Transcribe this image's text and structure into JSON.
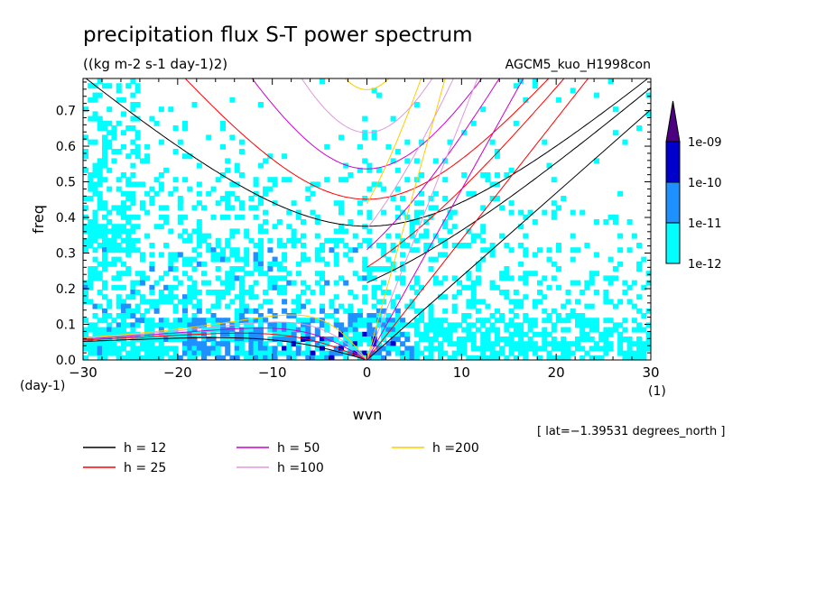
{
  "chart_data": {
    "type": "heatmap",
    "title": "precipitation flux S-T power spectrum",
    "subtitle": "((kg m-2 s-1 day-1)2)",
    "run_label": "AGCM5_kuo_H1998con",
    "xlabel": "wvn",
    "ylabel": "freq",
    "x_unit": "(1)",
    "y_unit": "(day-1)",
    "xlim": [
      -30,
      30
    ],
    "ylim": [
      0,
      0.79
    ],
    "xticks": [
      -30,
      -20,
      -10,
      0,
      10,
      20,
      30
    ],
    "xtick_labels": [
      "−30",
      "−20",
      "−10",
      "0",
      "10",
      "20",
      "30"
    ],
    "yticks": [
      0.0,
      0.1,
      0.2,
      0.3,
      0.4,
      0.5,
      0.6,
      0.7
    ],
    "ytick_labels": [
      "0.0",
      "0.1",
      "0.2",
      "0.3",
      "0.4",
      "0.5",
      "0.6",
      "0.7"
    ],
    "footnote": "[ lat=−1.39531 degrees_north ]",
    "colorbar": {
      "levels": [
        "1e-12",
        "1e-11",
        "1e-10",
        "1e-09"
      ],
      "colors": [
        "#00ffff",
        "#1e90ff",
        "#0000cd",
        "#4b0082"
      ]
    },
    "contour_fill_colors": [
      "#00ffff",
      "#1e90ff",
      "#0000cd"
    ],
    "dispersion_curves": [
      {
        "name": "h = 12",
        "color": "#000000",
        "equivalent_depth": 12
      },
      {
        "name": "h = 25",
        "color": "#ff0000",
        "equivalent_depth": 25
      },
      {
        "name": "h = 50",
        "color": "#cc00cc",
        "equivalent_depth": 50
      },
      {
        "name": "h =100",
        "color": "#dd99dd",
        "equivalent_depth": 100
      },
      {
        "name": "h =200",
        "color": "#ffcc00",
        "equivalent_depth": 200
      }
    ]
  }
}
